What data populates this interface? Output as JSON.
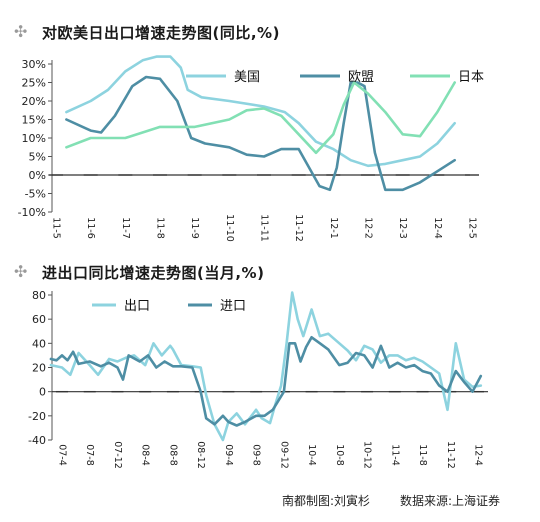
{
  "chart_data": [
    {
      "type": "line",
      "title": "对欧美日出口增速走势图(同比,%)",
      "y_tick_labels": [
        "30%",
        "25%",
        "20%",
        "15%",
        "10%",
        "5%",
        "0%",
        "-5%",
        "-10%"
      ],
      "y_ticks": [
        30,
        25,
        20,
        15,
        10,
        5,
        0,
        -5,
        -10
      ],
      "ylim": [
        -10,
        30
      ],
      "x_tick_labels": [
        "11-5",
        "11-6",
        "11-7",
        "11-8",
        "11-9",
        "11-10",
        "11-11",
        "11-12",
        "12-1",
        "12-2",
        "12-3",
        "12-4",
        "12-5"
      ],
      "x_range": [
        0,
        12
      ],
      "legend_position": "top",
      "series": [
        {
          "name": "美国",
          "color": "#8dd3df",
          "x": [
            0.3,
            1.0,
            1.5,
            2.0,
            2.5,
            2.9,
            3.3,
            3.6,
            3.8,
            4.2,
            5.0,
            6.0,
            6.6,
            7.0,
            7.5,
            8.0,
            8.5,
            9.0,
            9.5,
            10.0,
            10.5,
            11.0,
            11.5
          ],
          "y": [
            17,
            20,
            23,
            28,
            31,
            32.5,
            32,
            29,
            23,
            21,
            20,
            18.5,
            17,
            14,
            9,
            7,
            4,
            2.5,
            3,
            4,
            5,
            8.5,
            14
          ]
        },
        {
          "name": "欧盟",
          "color": "#4e8ea4",
          "x": [
            0.3,
            1.0,
            1.3,
            1.7,
            2.2,
            2.6,
            3.0,
            3.5,
            3.9,
            4.3,
            5.0,
            5.5,
            6.0,
            6.5,
            7.0,
            7.3,
            7.6,
            7.9,
            8.1,
            8.3,
            8.5,
            8.7,
            8.9,
            9.2,
            9.5,
            10.0,
            10.5,
            11.0,
            11.5
          ],
          "y": [
            15,
            12,
            11.5,
            16,
            24,
            26.5,
            26,
            20,
            10,
            8.5,
            7.5,
            5.5,
            5,
            7,
            7,
            2,
            -3,
            -4,
            2,
            14,
            25,
            25,
            24,
            6,
            -4,
            -4,
            -2,
            1,
            4
          ]
        },
        {
          "name": "日本",
          "color": "#82e0b4",
          "x": [
            0.3,
            1.0,
            2.0,
            3.0,
            4.0,
            5.0,
            5.5,
            6.0,
            6.5,
            7.0,
            7.5,
            8.0,
            8.3,
            8.6,
            9.0,
            9.5,
            10.0,
            10.5,
            11.0,
            11.5
          ],
          "y": [
            7.5,
            10,
            10,
            13,
            13,
            15,
            17.5,
            18,
            16,
            11,
            6,
            11,
            19,
            25,
            22,
            17,
            11,
            10.5,
            17,
            25
          ]
        }
      ]
    },
    {
      "type": "line",
      "title": "进出口同比增速走势图(当月,%)",
      "y_tick_labels": [
        "80",
        "60",
        "40",
        "20",
        "0",
        "-20",
        "-40"
      ],
      "y_ticks": [
        80,
        60,
        40,
        20,
        0,
        -20,
        -40
      ],
      "ylim": [
        -40,
        80
      ],
      "x_tick_labels": [
        "07-4",
        "07-8",
        "07-12",
        "08-4",
        "08-8",
        "08-12",
        "09-4",
        "09-8",
        "09-12",
        "10-4",
        "10-8",
        "10-12",
        "11-4",
        "11-8",
        "11-12",
        "12-4"
      ],
      "x_range": [
        0,
        15
      ],
      "legend_position": "top-left",
      "series": [
        {
          "name": "出口",
          "color": "#8dd3df",
          "x": [
            -0.4,
            0,
            0.3,
            0.6,
            1,
            1.3,
            1.7,
            2,
            2.3,
            2.6,
            3,
            3.3,
            3.6,
            3.9,
            4,
            4.3,
            4.7,
            5,
            5.2,
            5.5,
            5.8,
            6,
            6.3,
            6.6,
            7,
            7.2,
            7.5,
            7.7,
            7.9,
            8.1,
            8.3,
            8.5,
            8.7,
            9,
            9.3,
            9.6,
            10,
            10.3,
            10.6,
            10.9,
            11.2,
            11.5,
            11.8,
            12.1,
            12.4,
            12.7,
            13,
            13.3,
            13.6,
            13.9,
            14.2,
            14.5,
            14.8,
            15.1
          ],
          "y": [
            22,
            20,
            14,
            32,
            22,
            14,
            27,
            25,
            28,
            30,
            22,
            40,
            30,
            38,
            35,
            22,
            21,
            20,
            -3,
            -27,
            -40,
            -25,
            -18,
            -27,
            -15,
            -22,
            -26,
            -10,
            5,
            40,
            82,
            60,
            46,
            68,
            46,
            48,
            40,
            34,
            26,
            38,
            35,
            24,
            30,
            30,
            26,
            28,
            25,
            20,
            15,
            -15,
            40,
            10,
            4,
            5
          ]
        },
        {
          "name": "进口",
          "color": "#4e8ea4",
          "x": [
            -0.4,
            -0.2,
            0,
            0.2,
            0.4,
            0.6,
            1,
            1.4,
            1.7,
            2,
            2.2,
            2.4,
            2.8,
            3.1,
            3.4,
            3.7,
            4,
            4.3,
            4.7,
            5,
            5.2,
            5.5,
            5.8,
            6,
            6.3,
            6.6,
            7,
            7.3,
            7.6,
            8,
            8.2,
            8.4,
            8.6,
            8.8,
            9,
            9.3,
            9.6,
            10,
            10.3,
            10.6,
            10.9,
            11.2,
            11.5,
            11.8,
            12.1,
            12.4,
            12.7,
            13,
            13.3,
            13.6,
            13.9,
            14.2,
            14.5,
            14.8,
            15.1
          ],
          "y": [
            27,
            26,
            30,
            26,
            33,
            23,
            25,
            21,
            24,
            20,
            10,
            30,
            25,
            30,
            20,
            25,
            21,
            21,
            20,
            0,
            -22,
            -27,
            -20,
            -25,
            -28,
            -25,
            -20,
            -20,
            -15,
            0,
            40,
            40,
            25,
            37,
            45,
            40,
            35,
            22,
            24,
            32,
            30,
            20,
            38,
            20,
            24,
            20,
            22,
            17,
            15,
            5,
            0,
            17,
            8,
            0,
            13
          ]
        }
      ]
    }
  ],
  "footer": {
    "author": "南都制图:刘寅杉",
    "source": "数据来源:上海证券"
  },
  "colors": {
    "axis_zero": "#333333",
    "light_blue": "#8dd3df",
    "teal": "#4e8ea4",
    "mint": "#82e0b4"
  },
  "icons": [
    "plus-icon"
  ]
}
